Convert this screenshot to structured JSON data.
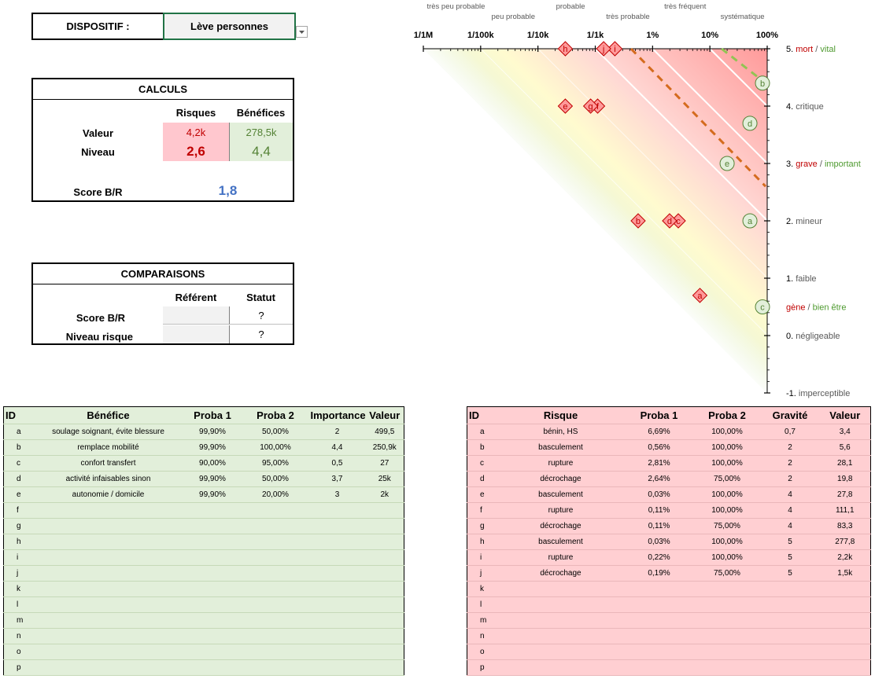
{
  "device": {
    "label": "DISPOSITIF :",
    "value": "Lève personnes"
  },
  "calculs": {
    "title": "CALCULS",
    "col_risk": "Risques",
    "col_benefit": "Bénéfices",
    "row_value": "Valeur",
    "row_level": "Niveau",
    "value_risk": "4,2k",
    "value_benefit": "278,5k",
    "level_risk": "2,6",
    "level_benefit": "4,4",
    "score_label": "Score B/R",
    "score_value": "1,8"
  },
  "comparaisons": {
    "title": "COMPARAISONS",
    "col_ref": "Référent",
    "col_status": "Statut",
    "row_score": "Score B/R",
    "row_level": "Niveau risque",
    "status_score": "?",
    "status_level": "?"
  },
  "chart_data": {
    "type": "scatter",
    "x_scale": "log",
    "xlim": [
      1e-06,
      1
    ],
    "ylim": [
      -1,
      5
    ],
    "x_ticks": [
      "1/1M",
      "1/100k",
      "1/10k",
      "1/1k",
      "1%",
      "10%",
      "100%"
    ],
    "x_category_labels": [
      {
        "label": "très peu probable",
        "row": 0
      },
      {
        "label": "peu probable",
        "row": 1
      },
      {
        "label": "probable",
        "row": 0
      },
      {
        "label": "très probable",
        "row": 1
      },
      {
        "label": "très fréquent",
        "row": 0
      },
      {
        "label": "systématique",
        "row": 1
      }
    ],
    "y_levels": [
      {
        "y": 5,
        "num": "5.",
        "risk": "mort",
        "sep": "/",
        "benefit": "vital"
      },
      {
        "y": 4,
        "num": "4.",
        "text": "critique"
      },
      {
        "y": 3,
        "num": "3.",
        "risk": "grave",
        "sep": "/",
        "benefit": "important"
      },
      {
        "y": 2,
        "num": "2.",
        "text": "mineur"
      },
      {
        "y": 1,
        "num": "1.",
        "text": "faible"
      },
      {
        "y": 0.5,
        "risk": "gène",
        "sep": "/",
        "benefit": "bien être"
      },
      {
        "y": 0,
        "num": "0.",
        "text": "négligeable"
      },
      {
        "y": -1,
        "num": "-1.",
        "text": "imperceptible"
      }
    ],
    "risk_points": [
      {
        "id": "a",
        "x": 0.0669,
        "y": 0.7
      },
      {
        "id": "b",
        "x": 0.0056,
        "y": 2
      },
      {
        "id": "c",
        "x": 0.0281,
        "y": 2
      },
      {
        "id": "d",
        "x": 0.0198,
        "y": 2
      },
      {
        "id": "e",
        "x": 0.0003,
        "y": 4
      },
      {
        "id": "f",
        "x": 0.0011,
        "y": 4
      },
      {
        "id": "g",
        "x": 0.00083,
        "y": 4
      },
      {
        "id": "h",
        "x": 0.0003,
        "y": 5
      },
      {
        "id": "i",
        "x": 0.0022,
        "y": 5
      },
      {
        "id": "j",
        "x": 0.0014,
        "y": 5
      }
    ],
    "benefit_points": [
      {
        "id": "a",
        "x": 0.4995,
        "y": 2
      },
      {
        "id": "b",
        "x": 0.999,
        "y": 4.4
      },
      {
        "id": "c",
        "x": 0.855,
        "y": 0.5
      },
      {
        "id": "d",
        "x": 0.4995,
        "y": 3.7
      },
      {
        "id": "e",
        "x": 0.1998,
        "y": 3
      }
    ],
    "colors": {
      "risk_fill": "#ff9999",
      "risk_stroke": "#c00000",
      "benefit_fill": "#e2efda",
      "benefit_stroke": "#548235",
      "risk_line": "#d46b1e",
      "benefit_line": "#92c353",
      "red_text": "#c00000",
      "green_text": "#4e9a2f"
    }
  },
  "benefits": {
    "headers": [
      "ID",
      "Bénéfice",
      "Proba 1",
      "Proba 2",
      "Importance",
      "Valeur"
    ],
    "rows": [
      [
        "a",
        "soulage soignant, évite blessure",
        "99,90%",
        "50,00%",
        "2",
        "499,5"
      ],
      [
        "b",
        "remplace mobilité",
        "99,90%",
        "100,00%",
        "4,4",
        "250,9k"
      ],
      [
        "c",
        "confort transfert",
        "90,00%",
        "95,00%",
        "0,5",
        "27"
      ],
      [
        "d",
        "activité infaisables sinon",
        "99,90%",
        "50,00%",
        "3,7",
        "25k"
      ],
      [
        "e",
        "autonomie / domicile",
        "99,90%",
        "20,00%",
        "3",
        "2k"
      ],
      [
        "f",
        "",
        "",
        "",
        "",
        ""
      ],
      [
        "g",
        "",
        "",
        "",
        "",
        ""
      ],
      [
        "h",
        "",
        "",
        "",
        "",
        ""
      ],
      [
        "i",
        "",
        "",
        "",
        "",
        ""
      ],
      [
        "j",
        "",
        "",
        "",
        "",
        ""
      ],
      [
        "k",
        "",
        "",
        "",
        "",
        ""
      ],
      [
        "l",
        "",
        "",
        "",
        "",
        ""
      ],
      [
        "m",
        "",
        "",
        "",
        "",
        ""
      ],
      [
        "n",
        "",
        "",
        "",
        "",
        ""
      ],
      [
        "o",
        "",
        "",
        "",
        "",
        ""
      ],
      [
        "p",
        "",
        "",
        "",
        "",
        ""
      ]
    ]
  },
  "risks": {
    "headers": [
      "ID",
      "Risque",
      "Proba 1",
      "Proba 2",
      "Gravité",
      "Valeur"
    ],
    "rows": [
      [
        "a",
        "bénin, HS",
        "6,69%",
        "100,00%",
        "0,7",
        "3,4"
      ],
      [
        "b",
        "basculement",
        "0,56%",
        "100,00%",
        "2",
        "5,6"
      ],
      [
        "c",
        "rupture",
        "2,81%",
        "100,00%",
        "2",
        "28,1"
      ],
      [
        "d",
        "décrochage",
        "2,64%",
        "75,00%",
        "2",
        "19,8"
      ],
      [
        "e",
        "basculement",
        "0,03%",
        "100,00%",
        "4",
        "27,8"
      ],
      [
        "f",
        "rupture",
        "0,11%",
        "100,00%",
        "4",
        "111,1"
      ],
      [
        "g",
        "décrochage",
        "0,11%",
        "75,00%",
        "4",
        "83,3"
      ],
      [
        "h",
        "basculement",
        "0,03%",
        "100,00%",
        "5",
        "277,8"
      ],
      [
        "i",
        "rupture",
        "0,22%",
        "100,00%",
        "5",
        "2,2k"
      ],
      [
        "j",
        "décrochage",
        "0,19%",
        "75,00%",
        "5",
        "1,5k"
      ],
      [
        "k",
        "",
        "",
        "",
        "",
        ""
      ],
      [
        "l",
        "",
        "",
        "",
        "",
        ""
      ],
      [
        "m",
        "",
        "",
        "",
        "",
        ""
      ],
      [
        "n",
        "",
        "",
        "",
        "",
        ""
      ],
      [
        "o",
        "",
        "",
        "",
        "",
        ""
      ],
      [
        "p",
        "",
        "",
        "",
        "",
        ""
      ]
    ]
  }
}
